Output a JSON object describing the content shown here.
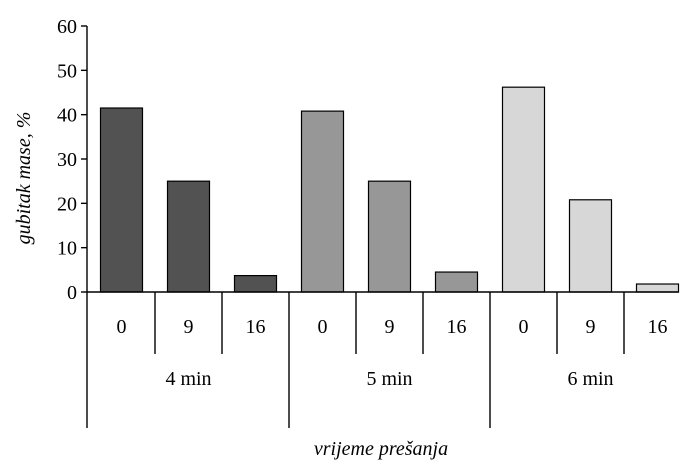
{
  "chart_data": {
    "type": "bar",
    "title": "",
    "xlabel": "vrijeme prešanja",
    "ylabel": "gubitak mase, %",
    "ylim": [
      0,
      60
    ],
    "yticks": [
      0,
      10,
      20,
      30,
      40,
      50,
      60
    ],
    "grid": false,
    "legend": "none",
    "groups": [
      {
        "label": "4 min",
        "color": "#525252",
        "categories": [
          "0",
          "9",
          "16"
        ],
        "values": [
          41.5,
          25,
          3.7
        ]
      },
      {
        "label": "5 min",
        "color": "#979797",
        "categories": [
          "0",
          "9",
          "16"
        ],
        "values": [
          40.8,
          25,
          4.5
        ]
      },
      {
        "label": "6 min",
        "color": "#d7d7d7",
        "categories": [
          "0",
          "9",
          "16"
        ],
        "values": [
          46.2,
          20.8,
          1.8
        ]
      }
    ]
  }
}
